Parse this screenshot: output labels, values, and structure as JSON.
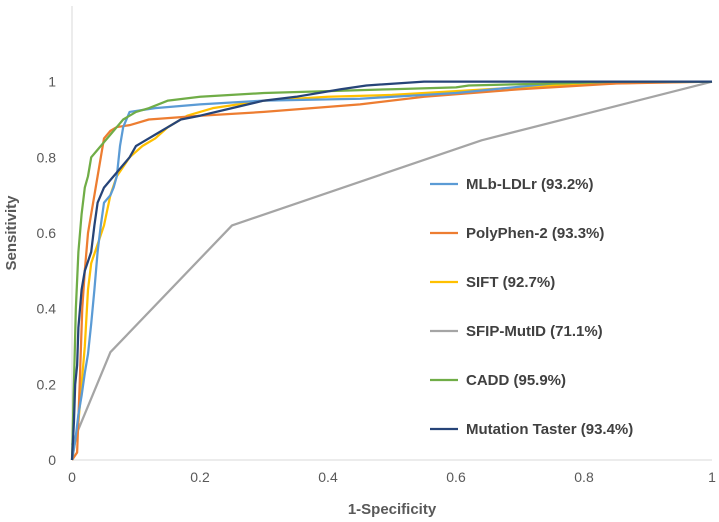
{
  "chart_data": {
    "type": "line",
    "title": "",
    "xlabel": "1-Specificity",
    "ylabel": "Sensitivity",
    "xlim": [
      0,
      1
    ],
    "ylim": [
      0,
      1.2
    ],
    "x_ticks": [
      0,
      0.2,
      0.4,
      0.6,
      0.8,
      1
    ],
    "x_tick_labels": [
      "0",
      "0.2",
      "0.4",
      "0.6",
      "0.8",
      "1"
    ],
    "y_ticks": [
      0,
      0.2,
      0.4,
      0.6,
      0.8,
      1
    ],
    "y_tick_labels": [
      "0",
      "0.2",
      "0.4",
      "0.6",
      "0.8",
      "1"
    ],
    "grid": false,
    "legend_position": "right",
    "series": [
      {
        "name": "MLb-LDLr (93.2%)",
        "color": "#5B9BD5",
        "points": [
          [
            0,
            0
          ],
          [
            0.005,
            0.05
          ],
          [
            0.01,
            0.12
          ],
          [
            0.015,
            0.17
          ],
          [
            0.02,
            0.23
          ],
          [
            0.025,
            0.28
          ],
          [
            0.03,
            0.36
          ],
          [
            0.035,
            0.45
          ],
          [
            0.04,
            0.55
          ],
          [
            0.045,
            0.62
          ],
          [
            0.05,
            0.68
          ],
          [
            0.06,
            0.7
          ],
          [
            0.065,
            0.72
          ],
          [
            0.07,
            0.75
          ],
          [
            0.075,
            0.83
          ],
          [
            0.08,
            0.88
          ],
          [
            0.09,
            0.92
          ],
          [
            0.11,
            0.925
          ],
          [
            0.13,
            0.93
          ],
          [
            0.2,
            0.94
          ],
          [
            0.3,
            0.95
          ],
          [
            0.45,
            0.955
          ],
          [
            0.6,
            0.97
          ],
          [
            0.75,
            0.995
          ],
          [
            0.85,
            1
          ],
          [
            1,
            1
          ]
        ]
      },
      {
        "name": "PolyPhen-2 (93.3%)",
        "color": "#ED7D31",
        "points": [
          [
            0,
            0
          ],
          [
            0.008,
            0.02
          ],
          [
            0.012,
            0.2
          ],
          [
            0.016,
            0.4
          ],
          [
            0.02,
            0.5
          ],
          [
            0.025,
            0.6
          ],
          [
            0.03,
            0.65
          ],
          [
            0.035,
            0.7
          ],
          [
            0.04,
            0.75
          ],
          [
            0.045,
            0.8
          ],
          [
            0.05,
            0.85
          ],
          [
            0.06,
            0.87
          ],
          [
            0.07,
            0.88
          ],
          [
            0.09,
            0.885
          ],
          [
            0.1,
            0.89
          ],
          [
            0.12,
            0.9
          ],
          [
            0.2,
            0.91
          ],
          [
            0.3,
            0.92
          ],
          [
            0.45,
            0.94
          ],
          [
            0.55,
            0.96
          ],
          [
            0.7,
            0.98
          ],
          [
            0.85,
            0.995
          ],
          [
            1,
            1
          ]
        ]
      },
      {
        "name": "SIFT (92.7%)",
        "color": "#FFC000",
        "points": [
          [
            0,
            0
          ],
          [
            0.01,
            0.1
          ],
          [
            0.02,
            0.3
          ],
          [
            0.025,
            0.45
          ],
          [
            0.03,
            0.52
          ],
          [
            0.04,
            0.57
          ],
          [
            0.05,
            0.62
          ],
          [
            0.06,
            0.7
          ],
          [
            0.07,
            0.75
          ],
          [
            0.09,
            0.8
          ],
          [
            0.11,
            0.83
          ],
          [
            0.13,
            0.85
          ],
          [
            0.15,
            0.88
          ],
          [
            0.18,
            0.91
          ],
          [
            0.22,
            0.93
          ],
          [
            0.3,
            0.95
          ],
          [
            0.4,
            0.96
          ],
          [
            0.5,
            0.965
          ],
          [
            0.6,
            0.975
          ],
          [
            0.75,
            0.99
          ],
          [
            0.9,
            0.998
          ],
          [
            1,
            1
          ]
        ]
      },
      {
        "name": "SFIP-MutID (71.1%)",
        "color": "#A5A5A5",
        "points": [
          [
            0,
            0.04
          ],
          [
            0.06,
            0.285
          ],
          [
            0.25,
            0.62
          ],
          [
            0.64,
            0.845
          ],
          [
            1,
            1
          ]
        ]
      },
      {
        "name": "CADD (95.9%)",
        "color": "#70AD47",
        "points": [
          [
            0,
            0
          ],
          [
            0.003,
            0.2
          ],
          [
            0.006,
            0.4
          ],
          [
            0.01,
            0.55
          ],
          [
            0.015,
            0.65
          ],
          [
            0.02,
            0.72
          ],
          [
            0.025,
            0.75
          ],
          [
            0.03,
            0.8
          ],
          [
            0.04,
            0.82
          ],
          [
            0.05,
            0.84
          ],
          [
            0.06,
            0.86
          ],
          [
            0.07,
            0.88
          ],
          [
            0.08,
            0.9
          ],
          [
            0.1,
            0.92
          ],
          [
            0.12,
            0.93
          ],
          [
            0.15,
            0.95
          ],
          [
            0.2,
            0.96
          ],
          [
            0.3,
            0.97
          ],
          [
            0.4,
            0.975
          ],
          [
            0.5,
            0.98
          ],
          [
            0.6,
            0.985
          ],
          [
            0.62,
            0.99
          ],
          [
            0.75,
            0.995
          ],
          [
            0.85,
            1
          ],
          [
            1,
            1
          ]
        ]
      },
      {
        "name": "Mutation Taster (93.4%)",
        "color": "#264478",
        "points": [
          [
            0,
            0
          ],
          [
            0.003,
            0.1
          ],
          [
            0.005,
            0.2
          ],
          [
            0.008,
            0.25
          ],
          [
            0.01,
            0.35
          ],
          [
            0.015,
            0.45
          ],
          [
            0.02,
            0.5
          ],
          [
            0.03,
            0.55
          ],
          [
            0.035,
            0.62
          ],
          [
            0.04,
            0.68
          ],
          [
            0.05,
            0.72
          ],
          [
            0.06,
            0.74
          ],
          [
            0.07,
            0.76
          ],
          [
            0.08,
            0.78
          ],
          [
            0.09,
            0.8
          ],
          [
            0.1,
            0.83
          ],
          [
            0.11,
            0.84
          ],
          [
            0.13,
            0.86
          ],
          [
            0.15,
            0.88
          ],
          [
            0.17,
            0.9
          ],
          [
            0.2,
            0.91
          ],
          [
            0.25,
            0.93
          ],
          [
            0.3,
            0.95
          ],
          [
            0.35,
            0.96
          ],
          [
            0.42,
            0.98
          ],
          [
            0.46,
            0.99
          ],
          [
            0.55,
            1
          ],
          [
            1,
            1
          ]
        ]
      }
    ]
  }
}
